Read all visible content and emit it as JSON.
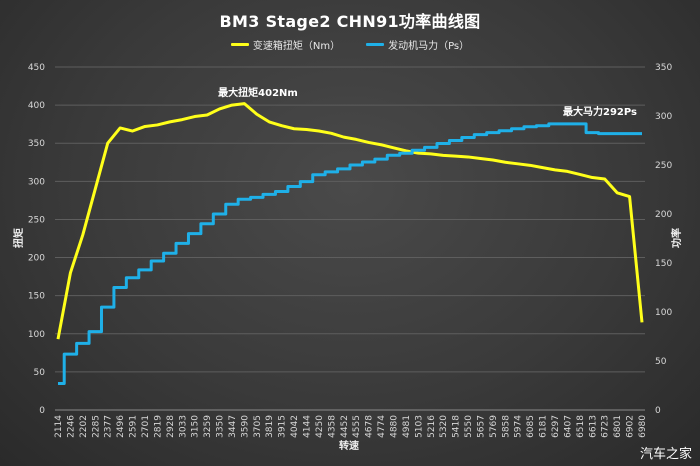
{
  "chart_data": {
    "type": "line",
    "title": "BM3 Stage2 CHN91功率曲线图",
    "xlabel": "转速",
    "ylabel": "扭矩",
    "y2label": "功率",
    "ylim": [
      0,
      450
    ],
    "y2lim": [
      0,
      350
    ],
    "yticks": [
      0,
      50,
      100,
      150,
      200,
      250,
      300,
      350,
      400,
      450
    ],
    "y2ticks": [
      0,
      50,
      100,
      150,
      200,
      250,
      300,
      350
    ],
    "grid": true,
    "legend_position": "top",
    "categories": [
      "2114",
      "2246",
      "2202",
      "2285",
      "2377",
      "2496",
      "2591",
      "2701",
      "2819",
      "2928",
      "3033",
      "3150",
      "3259",
      "3350",
      "3447",
      "3590",
      "3705",
      "3819",
      "3915",
      "4042",
      "4144",
      "4250",
      "4358",
      "4452",
      "4555",
      "4678",
      "4774",
      "4880",
      "4981",
      "5103",
      "5216",
      "5320",
      "5418",
      "5550",
      "5657",
      "5769",
      "5858",
      "5974",
      "6085",
      "6181",
      "6297",
      "6407",
      "6518",
      "6613",
      "6723",
      "6801",
      "6902",
      "6980"
    ],
    "series": [
      {
        "name": "变速箱扭矩（Nm）",
        "axis": "left",
        "color": "#ffff1a",
        "values": [
          93,
          180,
          230,
          290,
          350,
          370,
          366,
          372,
          374,
          378,
          381,
          385,
          387,
          395,
          400,
          402,
          388,
          378,
          373,
          369,
          368,
          366,
          363,
          358,
          355,
          351,
          348,
          344,
          340,
          337,
          336,
          334,
          333,
          332,
          330,
          328,
          325,
          323,
          321,
          318,
          315,
          313,
          309,
          305,
          303,
          285,
          280,
          115
        ]
      },
      {
        "name": "发动机马力（Ps）",
        "axis": "right",
        "color": "#1fb0e8",
        "values": [
          27,
          57,
          68,
          80,
          105,
          125,
          135,
          143,
          152,
          160,
          170,
          180,
          190,
          200,
          210,
          215,
          217,
          220,
          223,
          228,
          233,
          240,
          243,
          246,
          250,
          253,
          256,
          260,
          262,
          265,
          268,
          272,
          275,
          278,
          281,
          283,
          285,
          287,
          289,
          290,
          292,
          292,
          292,
          283,
          282,
          282,
          282,
          282
        ]
      }
    ],
    "annotations": [
      {
        "text": "最大扭矩402Nm",
        "series": "变速箱扭矩（Nm）",
        "x": "3705",
        "y": 402
      },
      {
        "text": "最大马力292Ps",
        "series": "发动机马力（Ps）",
        "x": "6723",
        "y": 292
      }
    ]
  },
  "title": "BM3 Stage2 CHN91功率曲线图",
  "legend": {
    "torque_label": "变速箱扭矩（Nm）",
    "power_label": "发动机马力（Ps）",
    "torque_color": "#ffff1a",
    "power_color": "#1fb0e8"
  },
  "axes": {
    "x_title": "转速",
    "y_left_title": "扭矩",
    "y_right_title": "功率"
  },
  "annotations": {
    "max_torque": "最大扭矩402Nm",
    "max_power": "最大马力292Ps"
  },
  "watermark": "汽车之家"
}
